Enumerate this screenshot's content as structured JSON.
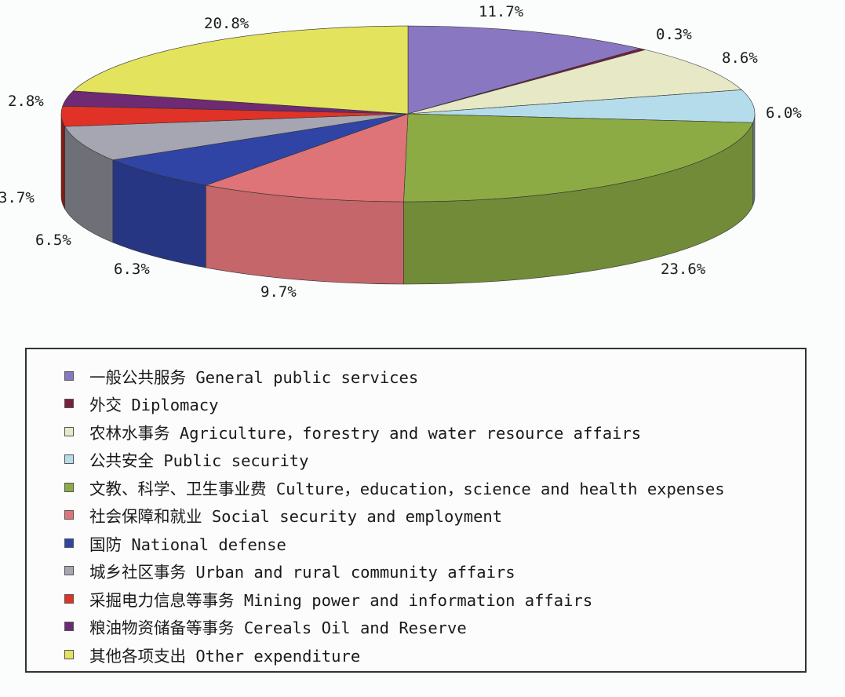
{
  "chart_data": {
    "type": "pie",
    "title": "",
    "slices": [
      {
        "label": "一般公共服务 General public services",
        "value": 11.7,
        "display": "11.7%",
        "color": "#8a77c2"
      },
      {
        "label": "外交 Diplomacy",
        "value": 0.3,
        "display": "0.3%",
        "color": "#7a1e3e"
      },
      {
        "label": "农林水事务 Agriculture, forestry and water resource affairs",
        "value": 8.6,
        "display": "8.6%",
        "color": "#e6e8c6"
      },
      {
        "label": "公共安全 Public security",
        "value": 6.0,
        "display": "6.0%",
        "color": "#b5dcea"
      },
      {
        "label": "文教、科学、卫生事业费 Culture, education, science and health expenses",
        "value": 23.6,
        "display": "23.6%",
        "color": "#8dab45"
      },
      {
        "label": "社会保障和就业 Social security and employment",
        "value": 9.7,
        "display": "9.7%",
        "color": "#de7478"
      },
      {
        "label": "国防 National defense",
        "value": 6.3,
        "display": "6.3%",
        "color": "#3044a6"
      },
      {
        "label": "城乡社区事务 Urban and rural community affairs",
        "value": 6.5,
        "display": "6.5%",
        "color": "#a6a6b2"
      },
      {
        "label": "采掘电力信息等事务 Mining power and information affairs",
        "value": 3.7,
        "display": "3.7%",
        "color": "#e03226"
      },
      {
        "label": "粮油物资储备等事务 Cereals Oil and Reserve",
        "value": 2.8,
        "display": "2.8%",
        "color": "#6e2a72"
      },
      {
        "label": "其他各项支出 Other expenditure",
        "value": 20.8,
        "display": "20.8%",
        "color": "#e4e35e"
      }
    ],
    "legend_placement": "bottom"
  },
  "legend": {
    "items": [
      {
        "text": "一般公共服务 General public services",
        "color": "#8a77c2"
      },
      {
        "text": "外交 Diplomacy",
        "color": "#7a1e3e"
      },
      {
        "text": "农林水事务 Agriculture，forestry and water resource affairs",
        "color": "#e6e8c6"
      },
      {
        "text": "公共安全 Public security",
        "color": "#b5dcea"
      },
      {
        "text": "文教、科学、卫生事业费 Culture，education，science and health expenses",
        "color": "#8dab45"
      },
      {
        "text": "社会保障和就业 Social security and employment",
        "color": "#de7478"
      },
      {
        "text": "国防 National defense",
        "color": "#3044a6"
      },
      {
        "text": "城乡社区事务 Urban and rural community affairs",
        "color": "#a6a6b2"
      },
      {
        "text": "采掘电力信息等事务 Mining power and information affairs",
        "color": "#e03226"
      },
      {
        "text": "粮油物资储备等事务 Cereals Oil and Reserve",
        "color": "#6e2a72"
      },
      {
        "text": "其他各项支出 Other expenditure",
        "color": "#e4e35e"
      }
    ]
  }
}
